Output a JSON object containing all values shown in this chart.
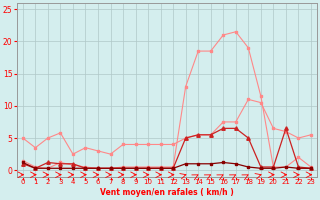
{
  "xlabel": "Vent moyen/en rafales ( km/h )",
  "xlim": [
    -0.5,
    23.5
  ],
  "ylim": [
    -1,
    26
  ],
  "yticks": [
    0,
    5,
    10,
    15,
    20,
    25
  ],
  "xticks": [
    0,
    1,
    2,
    3,
    4,
    5,
    6,
    7,
    8,
    9,
    10,
    11,
    12,
    13,
    14,
    15,
    16,
    17,
    18,
    19,
    20,
    21,
    22,
    23
  ],
  "bg_color": "#d4eeee",
  "grid_color": "#b0c8c8",
  "line_rafales_x": [
    0,
    1,
    2,
    3,
    4,
    5,
    6,
    7,
    8,
    9,
    10,
    11,
    12,
    13,
    14,
    15,
    16,
    17,
    18,
    19,
    20,
    21,
    22,
    23
  ],
  "line_rafales_y": [
    1.5,
    0.5,
    0.3,
    1.2,
    0.8,
    0.5,
    0.3,
    0.3,
    0.5,
    0.5,
    0.5,
    0.5,
    0.5,
    13.0,
    18.5,
    18.5,
    21.0,
    21.5,
    19.0,
    11.5,
    0.5,
    0.5,
    2.0,
    0.5
  ],
  "line_rafales_color": "#ff8888",
  "line_moyen_x": [
    0,
    1,
    2,
    3,
    4,
    5,
    6,
    7,
    8,
    9,
    10,
    11,
    12,
    13,
    14,
    15,
    16,
    17,
    18,
    19,
    20,
    21,
    22,
    23
  ],
  "line_moyen_y": [
    5.0,
    3.5,
    5.0,
    5.8,
    2.5,
    3.5,
    3.0,
    2.5,
    4.0,
    4.0,
    4.0,
    4.0,
    4.0,
    5.0,
    5.5,
    5.5,
    7.5,
    7.5,
    11.0,
    10.5,
    6.5,
    6.0,
    5.0,
    5.5
  ],
  "line_moyen_color": "#ff8888",
  "line_raf2_x": [
    0,
    1,
    2,
    3,
    4,
    5,
    6,
    7,
    8,
    9,
    10,
    11,
    12,
    13,
    14,
    15,
    16,
    17,
    18,
    19,
    20,
    21,
    22,
    23
  ],
  "line_raf2_y": [
    1.0,
    0.3,
    1.2,
    1.0,
    1.0,
    0.3,
    0.3,
    0.3,
    0.3,
    0.3,
    0.3,
    0.3,
    0.3,
    5.0,
    5.5,
    5.5,
    6.5,
    6.5,
    5.0,
    0.5,
    0.5,
    6.5,
    0.5,
    0.3
  ],
  "line_raf2_color": "#cc2222",
  "line_moy2_x": [
    0,
    1,
    2,
    3,
    4,
    5,
    6,
    7,
    8,
    9,
    10,
    11,
    12,
    13,
    14,
    15,
    16,
    17,
    18,
    19,
    20,
    21,
    22,
    23
  ],
  "line_moy2_y": [
    1.2,
    0.3,
    0.3,
    0.3,
    0.3,
    0.3,
    0.3,
    0.3,
    0.3,
    0.3,
    0.3,
    0.3,
    0.3,
    1.0,
    1.0,
    1.0,
    1.2,
    1.0,
    0.5,
    0.3,
    0.3,
    0.5,
    0.3,
    0.3
  ],
  "line_moy2_color": "#880000",
  "arrows_x": [
    0,
    1,
    2,
    3,
    4,
    5,
    6,
    7,
    8,
    9,
    10,
    11,
    12,
    13,
    14,
    15,
    16,
    17,
    18,
    19,
    20,
    21,
    22,
    23
  ],
  "arrows_angles": [
    0,
    0,
    0,
    0,
    0,
    0,
    0,
    0,
    0,
    0,
    0,
    0,
    0,
    30,
    45,
    45,
    45,
    45,
    45,
    30,
    0,
    0,
    0,
    0
  ]
}
